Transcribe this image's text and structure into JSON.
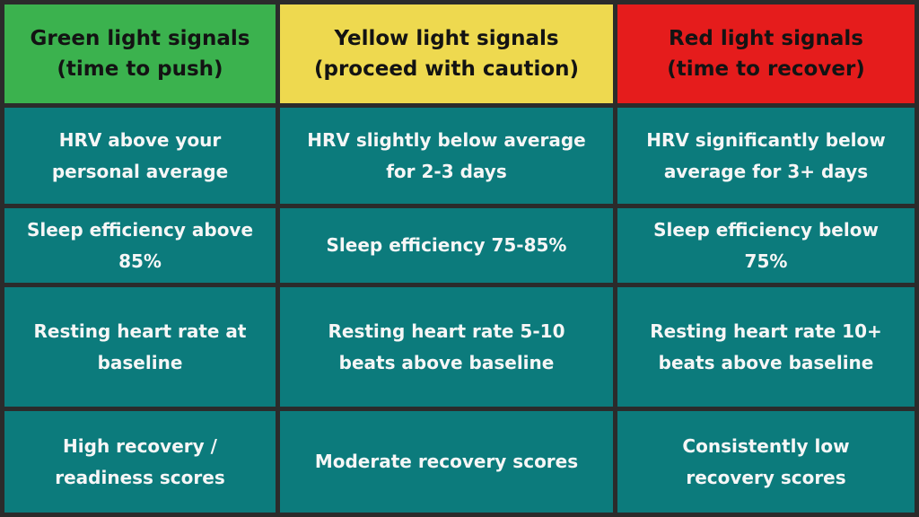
{
  "styles": {
    "border_color": "#2b2b2b",
    "green_header_bg": "#3bb24e",
    "yellow_header_bg": "#eed94f",
    "red_header_bg": "#e51c1c",
    "header_text_color": "#131313",
    "body_cell_bg": "#0c7b7c",
    "body_text_color": "#f6f6f6"
  },
  "chart_data": {
    "type": "table",
    "title": "",
    "columns": [
      "Green light signals\n(time to push)",
      "Yellow light signals\n(proceed with caution)",
      "Red light signals\n(time to recover)"
    ],
    "rows": [
      [
        "HRV above your\npersonal average",
        "HRV slightly below average\nfor 2-3 days",
        "HRV significantly below\naverage for 3+ days"
      ],
      [
        "Sleep efficiency above\n85%",
        "Sleep efficiency 75-85%",
        "Sleep efficiency below\n75%"
      ],
      [
        "Resting heart rate at\nbaseline",
        "Resting heart rate 5-10\nbeats above baseline",
        "Resting heart rate 10+\nbeats above baseline"
      ],
      [
        "High recovery /\nreadiness scores",
        "Moderate recovery scores",
        "Consistently low\nrecovery scores"
      ]
    ]
  }
}
